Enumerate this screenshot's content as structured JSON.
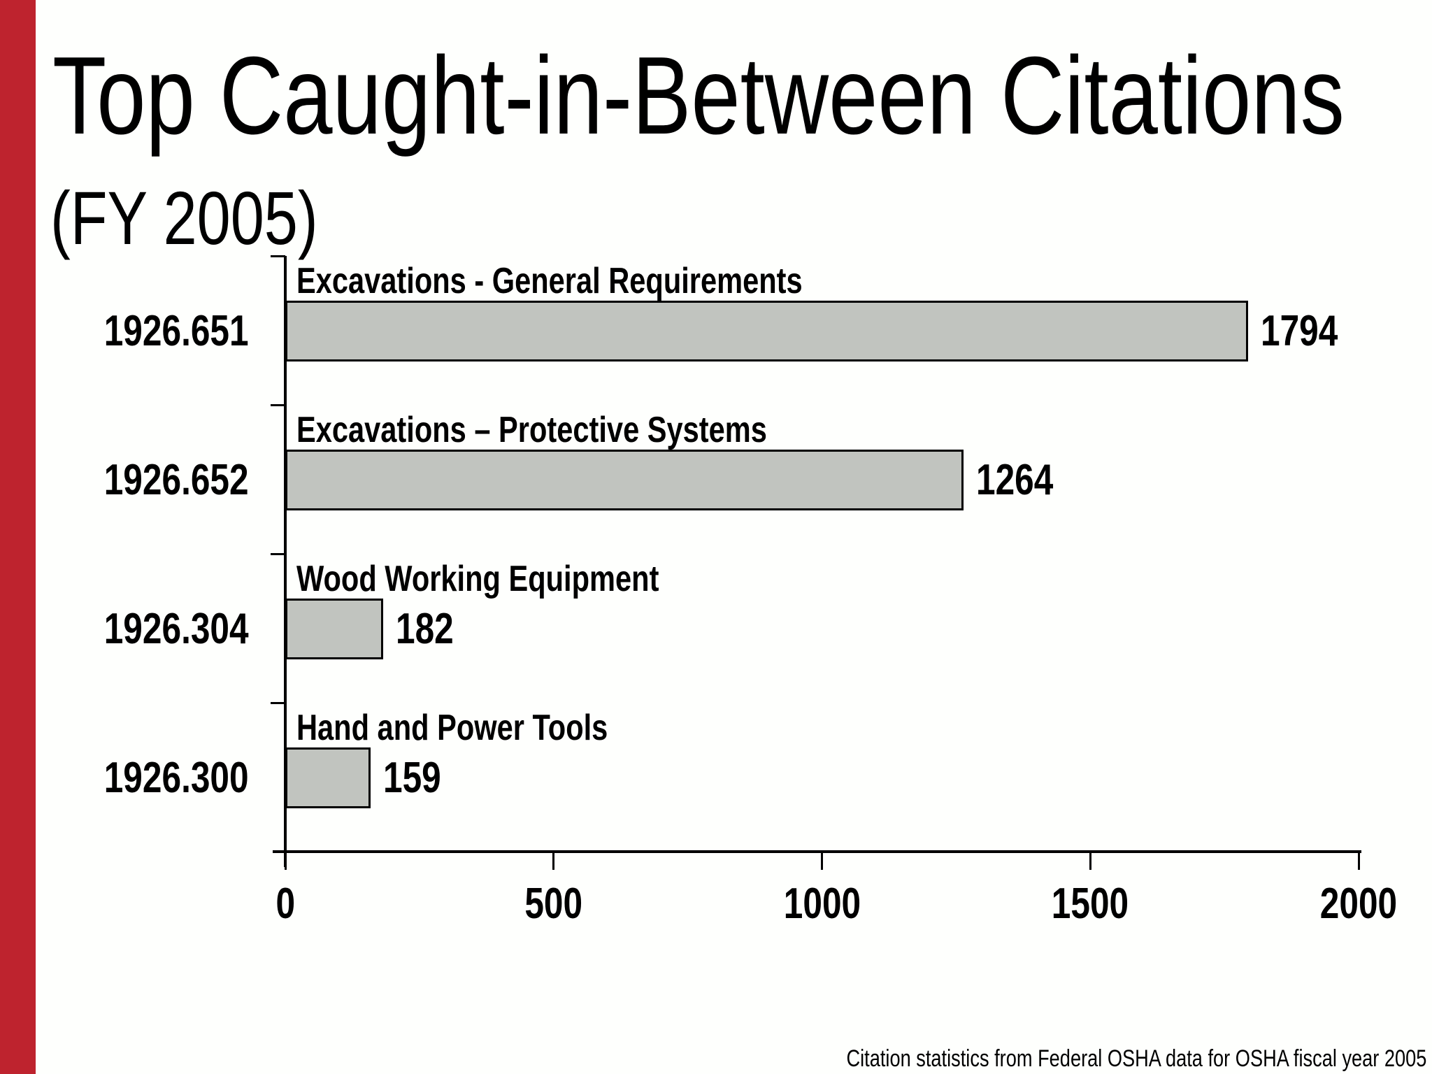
{
  "slide": {
    "title": "Top Caught-in-Between Citations",
    "subtitle": "(FY 2005)",
    "footer": "Citation statistics from Federal OSHA data for OSHA fiscal year 2005"
  },
  "colors": {
    "accent_stripe": "#BE232E",
    "background": "#FEFFFD",
    "bar_fill": "#C1C4BF",
    "bar_border": "#000000",
    "axis": "#000000",
    "text": "#000000"
  },
  "chart_data": {
    "type": "bar",
    "orientation": "horizontal",
    "title": "Top Caught-in-Between Citations (FY 2005)",
    "categories": [
      "1926.651",
      "1926.652",
      "1926.304",
      "1926.300"
    ],
    "bar_titles": [
      "Excavations - General Requirements",
      "Excavations – Protective Systems",
      "Wood Working Equipment",
      "Hand and Power Tools"
    ],
    "series": [
      {
        "name": "Citations",
        "values": [
          1794,
          1264,
          182,
          159
        ]
      }
    ],
    "data_labels": [
      "1794",
      "1264",
      "182",
      "159"
    ],
    "xlabel": "",
    "ylabel": "",
    "xlim": [
      0,
      2000
    ],
    "x_ticks": [
      0,
      500,
      1000,
      1500,
      2000
    ],
    "x_tick_labels": [
      "0",
      "500",
      "1000",
      "1500",
      "2000"
    ],
    "grid": false,
    "legend": false,
    "bar_color_hex": "#C1C4BF",
    "bar_border_hex": "#000000"
  }
}
